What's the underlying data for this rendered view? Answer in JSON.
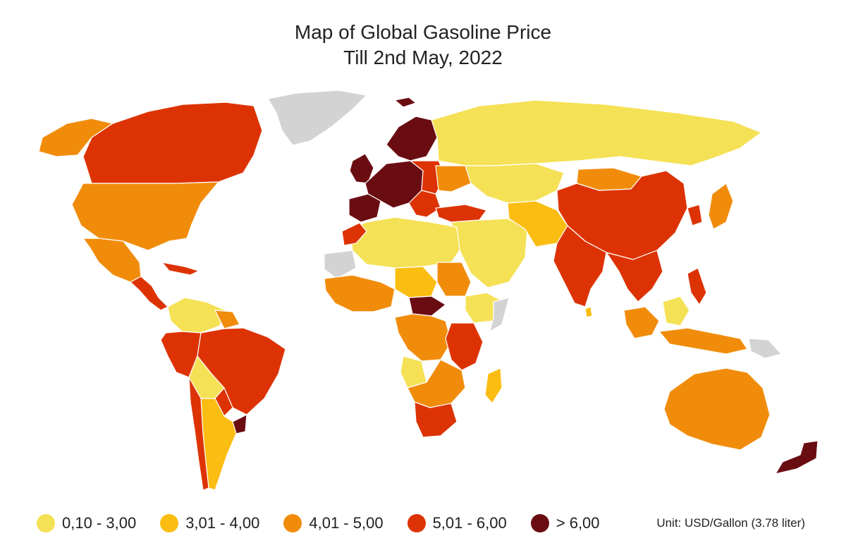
{
  "title": {
    "line1": "Map of Global Gasoline Price",
    "line2": "Till 2nd May, 2022"
  },
  "legend": [
    {
      "label": "0,10 - 3,00",
      "color": "#f5e156"
    },
    {
      "label": "3,01 - 4,00",
      "color": "#fbbd12"
    },
    {
      "label": "4,01 - 5,00",
      "color": "#f18c0b"
    },
    {
      "label": "5,01 - 6,00",
      "color": "#dd3304"
    },
    {
      "label": "> 6,00",
      "color": "#6a0d13"
    }
  ],
  "no_data_color": "#d3d3d3",
  "unit": "Unit: USD/Gallon (3.78 liter)"
}
